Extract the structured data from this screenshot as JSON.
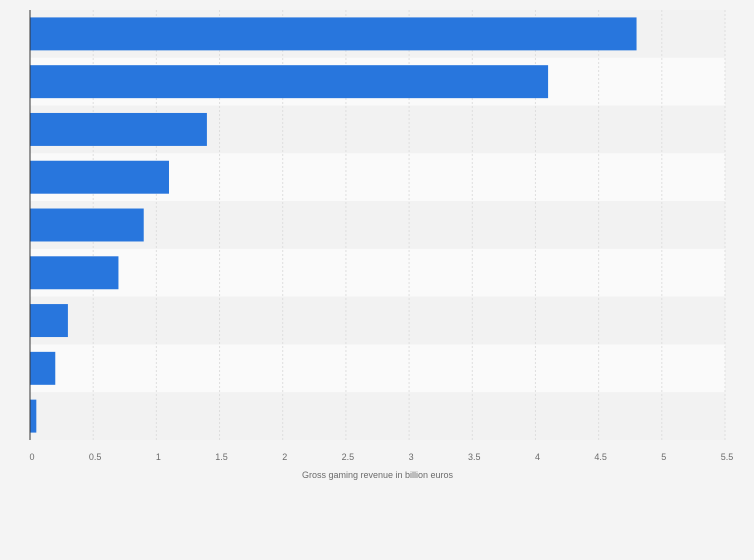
{
  "chart_data": {
    "type": "bar",
    "orientation": "horizontal",
    "values": [
      4.8,
      4.1,
      1.4,
      1.1,
      0.9,
      0.7,
      0.3,
      0.2,
      0.05
    ],
    "xlabel": "Gross gaming revenue in billion euros",
    "xlim": [
      0,
      5.5
    ],
    "xticks": [
      "0",
      "0.5",
      "1",
      "1.5",
      "2",
      "2.5",
      "3",
      "3.5",
      "4",
      "4.5",
      "5",
      "5.5"
    ],
    "grid": true
  },
  "colors": {
    "bar": "#2876dd",
    "background": "#f4f4f4",
    "band_light": "#fafafa",
    "band_dark": "#f2f2f2",
    "grid": "#dedede",
    "axis": "#333333"
  }
}
